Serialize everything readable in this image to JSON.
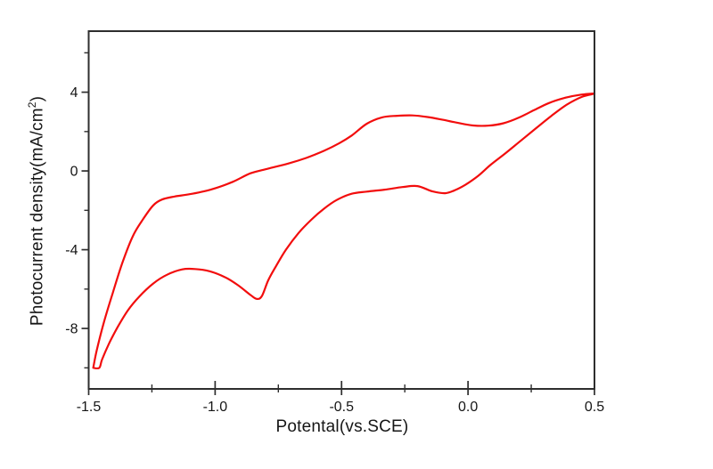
{
  "figure": {
    "background": "#ffffff",
    "frame_color": "#2e2e2e",
    "tick_color": "#2e2e2e",
    "text_color": "#161616"
  },
  "chart_data": {
    "type": "line",
    "subtype": "cyclic-voltammogram",
    "title": "",
    "xlabel": "Potental(vs.SCE)",
    "ylabel": "Photocurrent density(mA/cm2)",
    "ylabel_parts": {
      "prefix": "Photocurrent density(mA/cm",
      "sup": "2",
      "suffix": ")"
    },
    "xlim": [
      -1.5,
      0.5
    ],
    "ylim": [
      -11.07,
      7.1
    ],
    "grid": false,
    "legend": "none",
    "x_ticks": {
      "major": [
        {
          "v": -1.5,
          "label": "-1.5"
        },
        {
          "v": -1.0,
          "label": "-1.0"
        },
        {
          "v": -0.5,
          "label": "-0.5"
        },
        {
          "v": 0.0,
          "label": "0.0"
        },
        {
          "v": 0.5,
          "label": "0.5"
        }
      ],
      "minor": [
        -1.25,
        -0.75,
        -0.25,
        0.25
      ]
    },
    "y_ticks": {
      "major": [
        {
          "v": 4,
          "label": "4"
        },
        {
          "v": 0,
          "label": "0"
        },
        {
          "v": -4,
          "label": "-4"
        },
        {
          "v": -8,
          "label": "-8"
        }
      ],
      "minor": [
        6,
        2,
        -2,
        -6,
        -10
      ]
    },
    "series": [
      {
        "name": "CV scan loop (potential V vs mA/cm2)",
        "color": "#f20d0d",
        "line_width": 2.2,
        "points": [
          [
            -1.482,
            -10.0
          ],
          [
            -1.468,
            -9.1
          ],
          [
            -1.44,
            -7.7
          ],
          [
            -1.405,
            -6.2
          ],
          [
            -1.365,
            -4.6
          ],
          [
            -1.325,
            -3.3
          ],
          [
            -1.285,
            -2.45
          ],
          [
            -1.245,
            -1.75
          ],
          [
            -1.21,
            -1.45
          ],
          [
            -1.16,
            -1.3
          ],
          [
            -1.09,
            -1.16
          ],
          [
            -1.01,
            -0.92
          ],
          [
            -0.93,
            -0.55
          ],
          [
            -0.86,
            -0.12
          ],
          [
            -0.79,
            0.12
          ],
          [
            -0.71,
            0.38
          ],
          [
            -0.64,
            0.66
          ],
          [
            -0.57,
            1.02
          ],
          [
            -0.51,
            1.4
          ],
          [
            -0.46,
            1.8
          ],
          [
            -0.4,
            2.4
          ],
          [
            -0.34,
            2.72
          ],
          [
            -0.28,
            2.8
          ],
          [
            -0.22,
            2.82
          ],
          [
            -0.16,
            2.74
          ],
          [
            -0.1,
            2.6
          ],
          [
            -0.04,
            2.44
          ],
          [
            0.02,
            2.31
          ],
          [
            0.08,
            2.3
          ],
          [
            0.14,
            2.42
          ],
          [
            0.2,
            2.7
          ],
          [
            0.26,
            3.08
          ],
          [
            0.32,
            3.45
          ],
          [
            0.38,
            3.7
          ],
          [
            0.44,
            3.86
          ],
          [
            0.5,
            3.93
          ],
          [
            0.45,
            3.76
          ],
          [
            0.39,
            3.36
          ],
          [
            0.33,
            2.8
          ],
          [
            0.27,
            2.18
          ],
          [
            0.21,
            1.55
          ],
          [
            0.15,
            0.92
          ],
          [
            0.09,
            0.32
          ],
          [
            0.04,
            -0.25
          ],
          [
            -0.01,
            -0.7
          ],
          [
            -0.05,
            -0.97
          ],
          [
            -0.09,
            -1.13
          ],
          [
            -0.14,
            -1.04
          ],
          [
            -0.2,
            -0.77
          ],
          [
            -0.26,
            -0.82
          ],
          [
            -0.33,
            -0.95
          ],
          [
            -0.4,
            -1.05
          ],
          [
            -0.46,
            -1.16
          ],
          [
            -0.52,
            -1.48
          ],
          [
            -0.57,
            -1.92
          ],
          [
            -0.62,
            -2.48
          ],
          [
            -0.67,
            -3.15
          ],
          [
            -0.72,
            -4.0
          ],
          [
            -0.76,
            -4.85
          ],
          [
            -0.79,
            -5.55
          ],
          [
            -0.815,
            -6.35
          ],
          [
            -0.835,
            -6.5
          ],
          [
            -0.86,
            -6.3
          ],
          [
            -0.91,
            -5.8
          ],
          [
            -0.96,
            -5.4
          ],
          [
            -1.02,
            -5.1
          ],
          [
            -1.08,
            -4.98
          ],
          [
            -1.13,
            -5.0
          ],
          [
            -1.19,
            -5.27
          ],
          [
            -1.245,
            -5.72
          ],
          [
            -1.3,
            -6.38
          ],
          [
            -1.345,
            -7.08
          ],
          [
            -1.385,
            -7.92
          ],
          [
            -1.42,
            -8.78
          ],
          [
            -1.447,
            -9.58
          ],
          [
            -1.458,
            -10.0
          ],
          [
            -1.482,
            -10.0
          ]
        ]
      }
    ]
  }
}
